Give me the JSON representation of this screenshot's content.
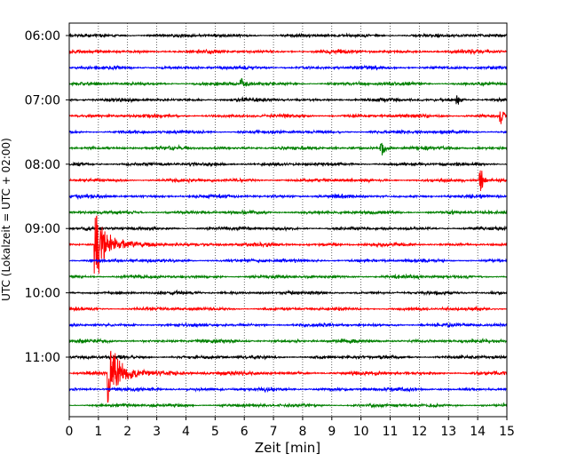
{
  "chart_data": {
    "type": "line",
    "title": "",
    "xlabel": "Zeit  [min]",
    "ylabel": "UTC (Lokalzeit = UTC + 02:00)",
    "xlim": [
      0,
      15
    ],
    "x_ticks": [
      "0",
      "1",
      "2",
      "3",
      "4",
      "5",
      "6",
      "7",
      "8",
      "9",
      "10",
      "11",
      "12",
      "13",
      "14",
      "15"
    ],
    "y_ticks": [
      "06:00",
      "07:00",
      "08:00",
      "09:00",
      "10:00",
      "11:00"
    ],
    "trace_interval_min": 15,
    "trace_start": "06:00",
    "trace_count": 24,
    "trace_colors": [
      "#000000",
      "#ff0000",
      "#0000ff",
      "#008000"
    ],
    "grid": "vertical dotted lines at each minute",
    "legend": "none",
    "events": [
      {
        "trace": "09:15",
        "minute": 0.9,
        "amplitude": "large"
      },
      {
        "trace": "11:15",
        "minute": 1.35,
        "amplitude": "large"
      },
      {
        "trace": "07:45",
        "minute": 10.7,
        "amplitude": "medium"
      },
      {
        "trace": "07:15",
        "minute": 14.8,
        "amplitude": "medium"
      },
      {
        "trace": "08:15",
        "minute": 14.1,
        "amplitude": "medium"
      },
      {
        "trace": "07:00",
        "minute": 13.3,
        "amplitude": "small"
      },
      {
        "trace": "06:45",
        "minute": 5.9,
        "amplitude": "small"
      }
    ]
  }
}
